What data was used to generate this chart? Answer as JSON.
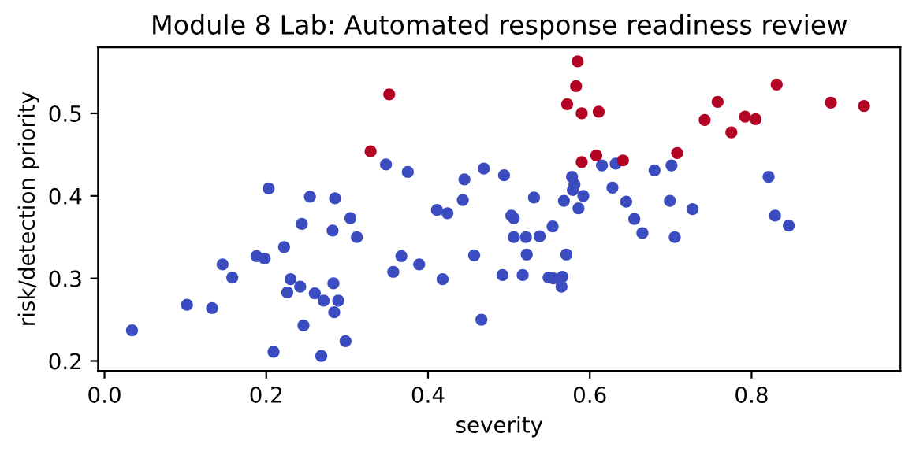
{
  "chart_data": {
    "type": "scatter",
    "title": "Module 8 Lab: Automated response readiness review",
    "xlabel": "severity",
    "ylabel": "risk/detection priority",
    "xlim": [
      -0.008,
      0.984
    ],
    "ylim": [
      0.188,
      0.58
    ],
    "xticks": [
      {
        "value": 0,
        "label": "0.0"
      },
      0.2,
      0.4,
      0.6,
      0.8
    ],
    "yticks": [
      0.2,
      0.3,
      0.4,
      0.5
    ],
    "grid": false,
    "marker": "circle",
    "series": [
      {
        "color": "#3b4cc0",
        "x": [
          0.348,
          0.375,
          0.469,
          0.445,
          0.443,
          0.411,
          0.424,
          0.203,
          0.254,
          0.285,
          0.304,
          0.244,
          0.282,
          0.312,
          0.222,
          0.188,
          0.198,
          0.146,
          0.158,
          0.367,
          0.357,
          0.389,
          0.457,
          0.418,
          0.492,
          0.494,
          0.23,
          0.242,
          0.226,
          0.283,
          0.26,
          0.271,
          0.289,
          0.284,
          0.102,
          0.133,
          0.034,
          0.246,
          0.466,
          0.209,
          0.268,
          0.298,
          0.615,
          0.632,
          0.68,
          0.701,
          0.821,
          0.578,
          0.581,
          0.579,
          0.592,
          0.568,
          0.586,
          0.531,
          0.628,
          0.645,
          0.699,
          0.727,
          0.655,
          0.665,
          0.705,
          0.829,
          0.846,
          0.503,
          0.506,
          0.554,
          0.506,
          0.521,
          0.538,
          0.522,
          0.571,
          0.517,
          0.549,
          0.555,
          0.566,
          0.565
        ],
        "values": [
          0.438,
          0.429,
          0.433,
          0.42,
          0.395,
          0.383,
          0.379,
          0.409,
          0.399,
          0.397,
          0.373,
          0.366,
          0.358,
          0.35,
          0.338,
          0.327,
          0.324,
          0.317,
          0.301,
          0.327,
          0.308,
          0.317,
          0.328,
          0.299,
          0.304,
          0.425,
          0.299,
          0.29,
          0.283,
          0.294,
          0.282,
          0.273,
          0.273,
          0.259,
          0.268,
          0.264,
          0.237,
          0.243,
          0.25,
          0.211,
          0.206,
          0.224,
          0.437,
          0.439,
          0.431,
          0.437,
          0.423,
          0.423,
          0.414,
          0.407,
          0.4,
          0.394,
          0.385,
          0.398,
          0.41,
          0.393,
          0.394,
          0.384,
          0.372,
          0.355,
          0.35,
          0.376,
          0.364,
          0.376,
          0.373,
          0.363,
          0.35,
          0.35,
          0.351,
          0.329,
          0.329,
          0.304,
          0.301,
          0.3,
          0.302,
          0.29
        ]
      },
      {
        "color": "#b40426",
        "x": [
          0.352,
          0.329,
          0.585,
          0.583,
          0.572,
          0.59,
          0.611,
          0.59,
          0.608,
          0.641,
          0.708,
          0.742,
          0.758,
          0.775,
          0.792,
          0.805,
          0.831,
          0.898,
          0.939
        ],
        "values": [
          0.523,
          0.454,
          0.563,
          0.533,
          0.511,
          0.5,
          0.502,
          0.441,
          0.449,
          0.443,
          0.452,
          0.492,
          0.514,
          0.477,
          0.496,
          0.493,
          0.535,
          0.513,
          0.509
        ]
      }
    ]
  }
}
